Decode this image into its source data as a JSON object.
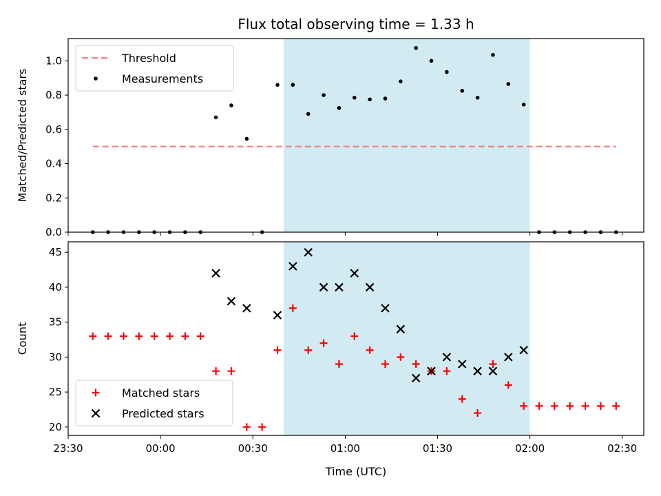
{
  "chart_data": [
    {
      "type": "scatter",
      "title": "Flux total observing time = 1.33 h",
      "ylabel": "Matched/Predicted stars",
      "xlabel": "",
      "ylim": [
        0,
        1.13
      ],
      "yticks": [
        0.0,
        0.2,
        0.4,
        0.6,
        0.8,
        1.0
      ],
      "ytick_labels": [
        "0.0",
        "0.2",
        "0.4",
        "0.6",
        "0.8",
        "1.0"
      ],
      "legend_location": "upper-left",
      "shaded_span": {
        "x0": 40,
        "x1": 120,
        "color": "#add8e6"
      },
      "series": [
        {
          "name": "Threshold",
          "kind": "dashed-line",
          "color": "#f08080",
          "x": [
            -22,
            148
          ],
          "y": [
            0.5,
            0.5
          ]
        },
        {
          "name": "Measurements",
          "kind": "dot",
          "color": "#000000",
          "x": [
            -22,
            -17,
            -12,
            -7,
            -2,
            3,
            8,
            13,
            18,
            23,
            28,
            33,
            38,
            43,
            48,
            53,
            58,
            63,
            68,
            73,
            78,
            83,
            88,
            93,
            98,
            103,
            108,
            113,
            118,
            123,
            128,
            133,
            138,
            143,
            148
          ],
          "y": [
            0,
            0,
            0,
            0,
            0,
            0,
            0,
            0,
            0.67,
            0.74,
            0.545,
            0,
            0.86,
            0.86,
            0.69,
            0.8,
            0.725,
            0.785,
            0.775,
            0.78,
            0.88,
            1.075,
            1.0,
            0.935,
            0.825,
            0.785,
            1.035,
            0.865,
            0.745,
            0,
            0,
            0,
            0,
            0,
            0
          ]
        }
      ]
    },
    {
      "type": "scatter",
      "title": "",
      "ylabel": "Count",
      "xlabel": "Time (UTC)",
      "ylim": [
        18.8,
        46.5
      ],
      "yticks": [
        20,
        25,
        30,
        35,
        40,
        45
      ],
      "ytick_labels": [
        "20",
        "25",
        "30",
        "35",
        "40",
        "45"
      ],
      "xlim": [
        -30,
        157
      ],
      "xticks": [
        -30,
        0,
        30,
        60,
        90,
        120,
        150
      ],
      "xtick_labels": [
        "23:30",
        "00:00",
        "00:30",
        "01:00",
        "01:30",
        "02:00",
        "02:30"
      ],
      "legend_location": "lower-left",
      "shaded_span": {
        "x0": 40,
        "x1": 120,
        "color": "#add8e6"
      },
      "series": [
        {
          "name": "Matched stars",
          "kind": "plus",
          "color": "#ff0000",
          "x": [
            -22,
            -17,
            -12,
            -7,
            -2,
            3,
            8,
            13,
            18,
            23,
            28,
            33,
            38,
            43,
            48,
            53,
            58,
            63,
            68,
            73,
            78,
            83,
            88,
            93,
            98,
            103,
            108,
            113,
            118,
            123,
            128,
            133,
            138,
            143,
            148
          ],
          "y": [
            33,
            33,
            33,
            33,
            33,
            33,
            33,
            33,
            28,
            28,
            20,
            20,
            31,
            37,
            31,
            32,
            29,
            33,
            31,
            29,
            30,
            29,
            28,
            28,
            24,
            22,
            29,
            26,
            23,
            23,
            23,
            23,
            23,
            23,
            23
          ]
        },
        {
          "name": "Predicted stars",
          "kind": "x",
          "color": "#000000",
          "x": [
            18,
            23,
            28,
            38,
            43,
            48,
            53,
            58,
            63,
            68,
            73,
            78,
            83,
            88,
            93,
            98,
            103,
            108,
            113,
            118
          ],
          "y": [
            42,
            38,
            37,
            36,
            43,
            45,
            40,
            40,
            42,
            40,
            37,
            34,
            27,
            28,
            30,
            29,
            28,
            28,
            30,
            31
          ]
        }
      ]
    }
  ]
}
